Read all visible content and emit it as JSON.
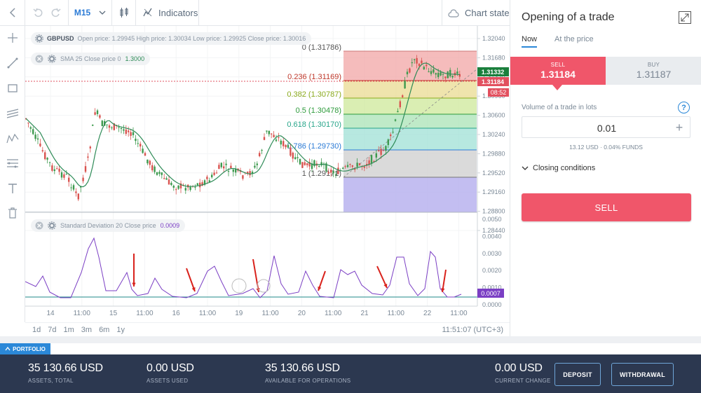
{
  "toolbar": {
    "timeframe": "M15",
    "indicators_label": "Indicators",
    "chart_state_label": "Chart state"
  },
  "legend": {
    "symbol": "GBPUSD",
    "ohlc": "Open price: 1.29945 High price: 1.30034 Low price: 1.29925 Close price: 1.30016",
    "sma_label": "SMA 25 Close price 0",
    "sma_value": "1.3000",
    "sd_label": "Standard Deviation 20 Close price",
    "sd_value": "0.0009"
  },
  "price_axis": {
    "ticks": [
      "1.32040",
      "1.31680",
      "1.31320",
      "1.30960",
      "1.30600",
      "1.30240",
      "1.29880",
      "1.29520",
      "1.29160",
      "1.28800",
      "1.28440"
    ],
    "current_price": "1.31332",
    "sell_price": "1.31184",
    "countdown": "08:52"
  },
  "indicator_axis": {
    "ticks": [
      "0.0050",
      "0.0040",
      "0.0030",
      "0.0020",
      "0.0010",
      "0.0000"
    ],
    "current": "0.0007"
  },
  "fibonacci": {
    "levels": [
      {
        "label": "0 (1.31786)",
        "color": "#555555"
      },
      {
        "label": "0.236 (1.31169)",
        "color": "#c0392b"
      },
      {
        "label": "0.382 (1.30787)",
        "color": "#8aaa1c"
      },
      {
        "label": "0.5 (1.30478)",
        "color": "#2e9b3c"
      },
      {
        "label": "0.618 (1.30170)",
        "color": "#27a58a"
      },
      {
        "label": "0.786 (1.29730)",
        "color": "#2b7bd6"
      },
      {
        "label": "1 (1.29171)",
        "color": "#555555"
      }
    ]
  },
  "time_axis": [
    "14",
    "11:00",
    "15",
    "11:00",
    "16",
    "11:00",
    "19",
    "11:00",
    "20",
    "11:00",
    "21",
    "11:00",
    "22",
    "11:00"
  ],
  "timeframes": [
    "1d",
    "7d",
    "1m",
    "3m",
    "6m",
    "1y"
  ],
  "clock": "11:51:07 (UTC+3)",
  "panel": {
    "title": "Opening of a trade",
    "tab_now": "Now",
    "tab_at_price": "At the price",
    "sell_label": "SELL",
    "sell_price": "1.31184",
    "buy_label": "BUY",
    "buy_price": "1.31187",
    "volume_label": "Volume of a trade in lots",
    "volume_value": "0.01",
    "volume_sub": "13.12 USD · 0.04% FUNDS",
    "closing_conditions": "Closing conditions",
    "sell_button": "SELL"
  },
  "portfolio": {
    "tab_label": "PORTFOLIO",
    "assets_total_value": "35 130.66 USD",
    "assets_total_label": "ASSETS, TOTAL",
    "assets_used_value": "0.00 USD",
    "assets_used_label": "ASSETS USED",
    "available_value": "35 130.66 USD",
    "available_label": "AVAILABLE FOR OPERATIONS",
    "current_change_value": "0.00 USD",
    "current_change_label": "CURRENT CHANGE",
    "deposit_label": "DEPOSIT",
    "withdrawal_label": "WITHDRAWAL"
  },
  "colors": {
    "accent": "#2b88d8",
    "sell": "#f0566a",
    "footer": "#2c3850",
    "sma_line": "#2e8b57",
    "sd_line": "#7b3fc4"
  }
}
